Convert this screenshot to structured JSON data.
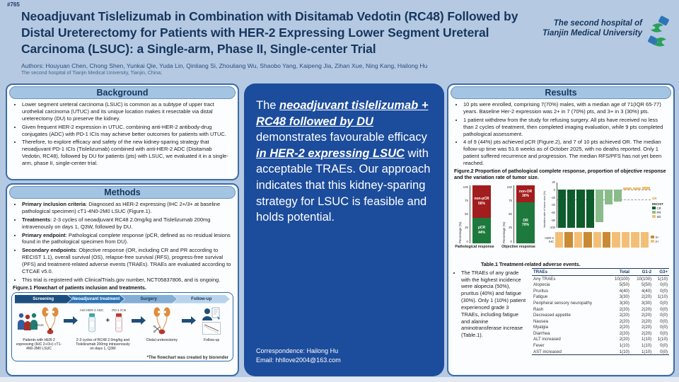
{
  "poster_id": "#765",
  "header": {
    "title": "Neoadjuvant Tislelizumab in Combination with Disitamab Vedotin (RC48) Followed by Distal Ureterectomy for Patients with HER-2 Expressing Lower Segment Ureteral Carcinoma (LSUC): a Single-arm, Phase II, Single-center Trial",
    "authors": "Authors: Houyuan Chen, Chong Shen, Yunkai Qie, Yuda Lin, Qinliang Si, Zhouliang Wu, Shaobo Yang, Kaipeng Jia, Zihan Xue, Ning Kang, Hailong Hu",
    "affiliation": "The second hospital of Tianjin Medical University, Tianjin, China;",
    "institution_line1": "The second hospital of",
    "institution_line2": "Tianjin Medical University"
  },
  "background": {
    "title": "Background",
    "bullets": [
      "Lower segment ureteral carcinoma (LSUC) is common as a subtype of upper tract urothelial carcinoma (UTUC) and its unique location makes it resectable via distal ureterectomy (DU) to preserve the kidney.",
      "Given frequent HER-2 expression in UTUC, combining anti-HER-2 antibody-drug conjugates (ADC) with PD-1 ICIs may achieve better outcomes for patients with UTUC.",
      "Therefore, to explore efficacy and safety of the new kidney-sparing strategy that neoadjuvant PD-1 ICIs (Tislelizumab) combined with anti-HER-2 ADC (Disitamab Vedotin, RC48), followed by DU for patients (pts) with LSUC, we evaluated it in a single-arm, phase II, single-center trial."
    ]
  },
  "methods": {
    "title": "Methods",
    "bullets": [
      {
        "lead": "Primary inclusion criteria",
        "text": ": Diagnosed as HER-2 expressing (IHC 2+/3+ at baseline pathological specimen) cT1-4N0-2M0 LSUC (Figure.1)."
      },
      {
        "lead": "Treatments",
        "text": ": 2-3 cycles of neoadjuvant RC48 2.0mg/kg and Tislelizumab 200mg intravenously on days 1, Q3W, followed by DU."
      },
      {
        "lead": "Primary endpoint",
        "text": ": Pathological complete response (pCR, defined as no residual lesions found in the pathological specimen from DU)."
      },
      {
        "lead": "Secondary endpoints",
        "text": ": Objective response (OR, including CR and PR according to RECIST 1.1), overall survival (OS), relapse-free survival (RFS), progress-free survival (PFS) and treatment-related adverse events (TRAEs). TRAEs are evaluated according to CTCAE v5.0."
      },
      {
        "lead": "",
        "text": "This trial is registered with ClinicalTrials.gov number, NCT05837806, and is ongoing."
      }
    ],
    "figure1_caption": "Figure.1 Flowchart of patients inclusion and treatments."
  },
  "flowchart": {
    "stages": [
      "Screening",
      "Neoadjuvant treatment",
      "Surgery",
      "Follow-up"
    ],
    "captions": [
      "Patients with HER-2 expressing (IHC 2+/3+) cT1-4N0-2M0 LSUC",
      "2-3 cycles of RC48 2.0mg/kg and Tislelizumab 200mg intravenously on days 1, Q3W",
      "Distal ureterectomy",
      "Follow-up"
    ],
    "vial_label1": "Anti HER-2 ADC",
    "vial_label2": "PD-1 ICIs",
    "plus": "+",
    "lsuc_label": "LSUC",
    "credit": "*The flowchart was created by biorender"
  },
  "conclusion": {
    "seg1": "The ",
    "seg2": "neoadjuvant tislelizumab + RC48 followed by DU",
    "seg3": " demonstrates favourable efficacy ",
    "seg4": "in HER-2 expressing LSUC",
    "seg5": " with acceptable TRAEs. Our approach indicates that this kidney-sparing strategy for LSUC is feasible and holds potential."
  },
  "correspondence": {
    "line1": "Correspondence: Hailong Hu",
    "line2": "Email: hhllove2004@163.com"
  },
  "results": {
    "title": "Results",
    "bullets": [
      "10 pts were enrolled, comprising 7(70%) males, with a median age of 71(IQR 65-77) years. Baseline Her-2 expression was 2+ in 7 (70%) pts, and 3+ in 3 (30%) pts.",
      "1 patient withdrew from the study for refusing surgery. All pts have received no less than 2 cycles of treatment, then completed imaging evaluation, while 9 pts completed pathological assessment.",
      "4 of 9 (44%) pts achieved pCR (Figure.2), and 7 of 10 pts achieved OR. The median follow-up time was 51.6 weeks as of October 2025, with no deaths reported. Only 1 patient suffered recurrence and progression. The median RFS/PFS has not yet been reached."
    ],
    "figure2_caption": "Figure.2 Proportion of pathological complete response, proportion of objective response and the variation rate of tumor size.",
    "trae_bullet": "The TRAEs of any grade with the highest incidence were alopecia (50%), pruritus (40%) and fatigue (30%). Only 1 (10%) patient experienced grade 3 TRAEs, including fatigue and alanine aminotransferase increase (Table.1).",
    "table_caption": "Table.1 Treatment-related adverse events."
  },
  "chart_data": [
    {
      "type": "bar",
      "subtype": "stacked",
      "title": "Pathological response",
      "ylabel": "Percentage (%)",
      "ylim": [
        0,
        100
      ],
      "yticks": [
        100,
        75,
        50,
        25,
        0
      ],
      "series": [
        {
          "name": "pCR",
          "pct": "44%",
          "value": 44,
          "color": "#1e7a3c"
        },
        {
          "name": "non-pCR",
          "pct": "56%",
          "value": 56,
          "color": "#a21d1d"
        }
      ]
    },
    {
      "type": "bar",
      "subtype": "stacked",
      "title": "Objective response",
      "ylabel": "Percentage (%)",
      "ylim": [
        0,
        100
      ],
      "yticks": [
        100,
        75,
        50,
        25,
        0
      ],
      "series": [
        {
          "name": "OR",
          "pct": "70%",
          "value": 70,
          "color": "#1e7a3c"
        },
        {
          "name": "non-OR",
          "pct": "30%",
          "value": 30,
          "color": "#a21d1d"
        }
      ]
    },
    {
      "type": "bar",
      "subtype": "waterfall",
      "title": "Variation rate of tumor size",
      "ylabel": "Variation rate of tumor size (%)",
      "ylim": [
        -100,
        20
      ],
      "yticks": [
        20,
        0,
        -20,
        -40,
        -60,
        -80,
        -100
      ],
      "values": [
        -100,
        -100,
        -100,
        -100,
        -85,
        -38,
        -32,
        6,
        7,
        8
      ],
      "recist": [
        "CR",
        "CR",
        "CR",
        "CR",
        "PR",
        "PR",
        "PR",
        "SD",
        "SD",
        "SD"
      ],
      "colors": {
        "CR": "#0d5c2c",
        "PR": "#8abb8a",
        "SD": "#f3bf77"
      },
      "reference_lines": [
        0,
        -25
      ],
      "or_label": "OR",
      "legend_title": "RECIST",
      "legend": [
        "CR",
        "PR",
        "SD"
      ]
    },
    {
      "type": "heatmap",
      "label": "HER-2 IHC",
      "values": [
        "2+",
        "3+",
        "2+",
        "3+",
        "2+",
        "3+",
        "2+",
        "2+",
        "2+",
        "2+"
      ],
      "colors": {
        "3+": "#c98a33",
        "2+": "#f3bf77"
      },
      "legend": [
        "3+",
        "2+"
      ]
    },
    {
      "type": "table",
      "title": "Table.1 Treatment-related adverse events.",
      "headers": [
        "TRAEs",
        "Total",
        "G1-2",
        "G3+"
      ],
      "rows": [
        [
          "Any TRAEs",
          "10(100)",
          "10(100)",
          "1(10)"
        ],
        [
          "Alopecia",
          "5(50)",
          "5(50)",
          "0(0)"
        ],
        [
          "Pruritus",
          "4(40)",
          "4(40)",
          "0(0)"
        ],
        [
          "Fatigue",
          "3(30)",
          "2(20)",
          "1(10)"
        ],
        [
          "Peripheral sensory neuropathy",
          "3(30)",
          "3(30)",
          "0(0)"
        ],
        [
          "Rash",
          "2(20)",
          "2(20)",
          "0(0)"
        ],
        [
          "Decreased appetite",
          "2(20)",
          "2(20)",
          "0(0)"
        ],
        [
          "Nausea",
          "2(20)",
          "2(20)",
          "0(0)"
        ],
        [
          "Myalgia",
          "2(20)",
          "2(20)",
          "0(0)"
        ],
        [
          "Diarrhea",
          "2(20)",
          "2(20)",
          "0(0)"
        ],
        [
          "ALT increased",
          "2(20)",
          "1(10)",
          "1(10)"
        ],
        [
          "Fever",
          "1(10)",
          "1(10)",
          "0(0)"
        ],
        [
          "AST increased",
          "1(10)",
          "1(10)",
          "0(0)"
        ]
      ]
    }
  ]
}
